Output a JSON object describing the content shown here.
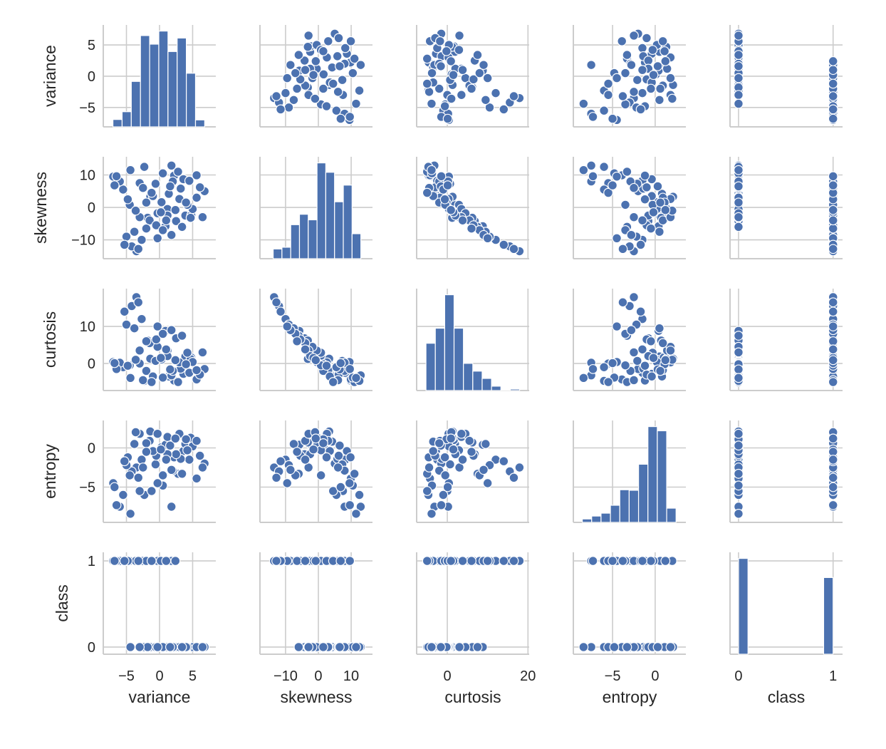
{
  "chart_data": {
    "type": "pairplot",
    "variables": [
      "variance",
      "skewness",
      "curtosis",
      "entropy",
      "class"
    ],
    "axes": {
      "variance": {
        "ticks": [
          -5,
          0,
          5
        ],
        "xlim": [
          -8.5,
          8.5
        ],
        "ylim": [
          -8.1,
          8.2
        ]
      },
      "skewness": {
        "ticks": [
          -10,
          0,
          10
        ],
        "xlim": [
          -17.8,
          16.5
        ],
        "ylim": [
          -15.8,
          15.6
        ]
      },
      "curtosis": {
        "ticks": [
          0,
          20
        ],
        "yticks": [
          0,
          10
        ],
        "xlim": [
          -7.6,
          20.3
        ],
        "ylim": [
          -7.3,
          20.2
        ]
      },
      "entropy": {
        "ticks": [
          -5,
          0
        ],
        "xlim": [
          -9.6,
          3.6
        ],
        "ylim": [
          -9.5,
          3.5
        ]
      },
      "class": {
        "ticks": [
          0,
          1
        ],
        "xlim": [
          -0.09,
          1.1
        ],
        "ylim": [
          -0.083,
          1.1
        ]
      }
    },
    "histograms": {
      "variance": {
        "range": [
          -7.04,
          6.82
        ],
        "counts": [
          18,
          37,
          111,
          223,
          202,
          234,
          184,
          217,
          131,
          17
        ]
      },
      "skewness": {
        "range": [
          -13.77,
          12.95
        ],
        "counts": [
          28,
          33,
          98,
          128,
          112,
          276,
          249,
          164,
          212,
          72
        ]
      },
      "curtosis": {
        "range": [
          -5.29,
          17.93
        ],
        "counts": [
          195,
          257,
          395,
          257,
          112,
          80,
          50,
          18,
          1,
          6
        ]
      },
      "entropy": {
        "range": [
          -8.55,
          2.45
        ],
        "counts": [
          13,
          24,
          35,
          65,
          124,
          122,
          221,
          364,
          348,
          54
        ]
      },
      "class": {
        "range": [
          0,
          1
        ],
        "counts": [
          762,
          0,
          0,
          0,
          0,
          0,
          0,
          0,
          0,
          610
        ]
      }
    },
    "points": [
      [
        3.6,
        8.7,
        -2.8,
        -0.4,
        0
      ],
      [
        4.5,
        8.2,
        -2.5,
        -1.5,
        0
      ],
      [
        3.9,
        -2.5,
        1.9,
        0.5,
        0
      ],
      [
        0.3,
        1.6,
        1.1,
        0.1,
        0
      ],
      [
        2.2,
        9.8,
        -4.6,
        -1.2,
        0
      ],
      [
        5.6,
        9.9,
        -4.3,
        -3.9,
        0
      ],
      [
        4.8,
        -2.4,
        1.6,
        1.0,
        0
      ],
      [
        6.8,
        5.0,
        -1.5,
        -2.0,
        0
      ],
      [
        1.4,
        4.2,
        -3.5,
        0.8,
        0
      ],
      [
        -1.4,
        3.3,
        1.3,
        2.1,
        0
      ],
      [
        3.2,
        5.8,
        -1.4,
        -1.4,
        0
      ],
      [
        4.7,
        -3.2,
        1.2,
        1.3,
        0
      ],
      [
        -0.6,
        7.3,
        0.7,
        -2.1,
        0
      ],
      [
        2.8,
        11.0,
        -5.0,
        -3.3,
        0
      ],
      [
        5.0,
        -0.5,
        0.4,
        0.2,
        0
      ],
      [
        1.8,
        12.9,
        -3.2,
        -7.5,
        0
      ],
      [
        -2.3,
        12.5,
        -4.7,
        -6.0,
        0
      ],
      [
        6.1,
        6.2,
        -3.0,
        -1.0,
        0
      ],
      [
        0.9,
        -5.8,
        8.8,
        0.4,
        0
      ],
      [
        2.5,
        -4.2,
        6.8,
        -0.8,
        0
      ],
      [
        4.2,
        0.8,
        2.9,
        -0.3,
        0
      ],
      [
        -1.8,
        -3.2,
        6.2,
        0.7,
        0
      ],
      [
        1.2,
        -0.5,
        3.5,
        1.4,
        0
      ],
      [
        3.0,
        2.6,
        0.3,
        1.8,
        0
      ],
      [
        5.6,
        3.0,
        -1.8,
        0.9,
        0
      ],
      [
        -3.0,
        7.5,
        0.0,
        -5.5,
        0
      ],
      [
        0.5,
        10.5,
        -3.8,
        -4.8,
        0
      ],
      [
        2.0,
        8.0,
        -2.0,
        -2.9,
        0
      ],
      [
        4.0,
        1.5,
        -0.2,
        1.1,
        0
      ],
      [
        -0.3,
        -1.8,
        4.5,
        1.8,
        0
      ],
      [
        6.5,
        -3.0,
        3.0,
        -2.5,
        0
      ],
      [
        3.4,
        -6.0,
        7.5,
        -3.3,
        0
      ],
      [
        1.6,
        6.5,
        -1.6,
        0.3,
        0
      ],
      [
        -4.4,
        11.5,
        -3.9,
        -8.4,
        0
      ],
      [
        -3.5,
        -13.5,
        17.9,
        -2.5,
        1
      ],
      [
        -4.2,
        -12.0,
        15.5,
        -3.0,
        1
      ],
      [
        -2.7,
        -10.0,
        12.0,
        -1.5,
        1
      ],
      [
        -5.0,
        -9.0,
        10.5,
        -2.2,
        1
      ],
      [
        -3.8,
        -7.5,
        9.5,
        0.5,
        1
      ],
      [
        -1.5,
        -4.0,
        5.5,
        0.9,
        1
      ],
      [
        -0.5,
        -5.5,
        6.5,
        -1.0,
        1
      ],
      [
        0.5,
        -7.0,
        8.0,
        -3.5,
        1
      ],
      [
        -2.0,
        1.5,
        -2.0,
        0.6,
        1
      ],
      [
        -5.5,
        5.5,
        -1.0,
        -6.0,
        1
      ],
      [
        -7.0,
        9.5,
        0.4,
        -4.5,
        1
      ],
      [
        -6.0,
        8.0,
        0.2,
        -7.5,
        1
      ],
      [
        -3.0,
        -3.0,
        3.5,
        1.8,
        1
      ],
      [
        1.2,
        -2.5,
        2.0,
        -0.8,
        1
      ],
      [
        1.8,
        -8.5,
        9.0,
        -2.8,
        1
      ],
      [
        -4.5,
        0.8,
        -0.5,
        -3.5,
        1
      ],
      [
        -1.0,
        3.5,
        -3.5,
        -0.4,
        1
      ],
      [
        -2.5,
        6.0,
        -4.5,
        -2.5,
        1
      ],
      [
        -6.5,
        9.6,
        -1.5,
        -7.3,
        1
      ],
      [
        -0.3,
        -9.5,
        10.0,
        -4.5,
        1
      ],
      [
        -3.6,
        -1.0,
        1.0,
        2.0,
        1
      ],
      [
        -4.8,
        2.5,
        -0.6,
        -1.2,
        1
      ],
      [
        0.2,
        -1.5,
        1.5,
        -0.2,
        1
      ],
      [
        -2.0,
        -6.5,
        6.0,
        -0.5,
        1
      ],
      [
        -5.3,
        -11.5,
        14.0,
        -1.7,
        1
      ],
      [
        -1.2,
        4.5,
        -5.0,
        -5.5,
        1
      ],
      [
        -6.8,
        6.8,
        0.1,
        -5.0,
        1
      ],
      [
        1.0,
        -4.0,
        3.8,
        -1.5,
        1
      ],
      [
        2.4,
        -0.8,
        0.9,
        1.2,
        1
      ],
      [
        -3.2,
        -12.8,
        16.5,
        -3.8,
        1
      ]
    ],
    "colors": {
      "marker": "#4c72b0",
      "marker_edge": "#ffffff",
      "grid": "#cccccc",
      "text": "#262626"
    },
    "grid": true
  }
}
